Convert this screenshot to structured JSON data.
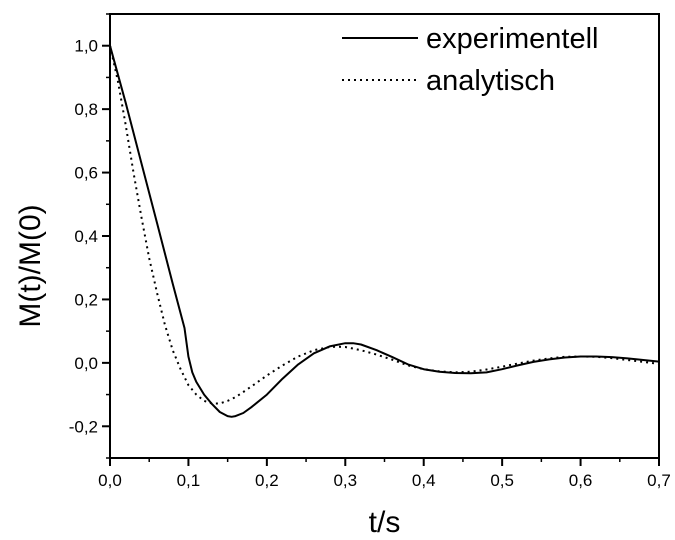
{
  "chart_data": {
    "type": "line",
    "title": "",
    "xlabel": "t/s",
    "ylabel": "M(t)/M(0)",
    "xlim": [
      0.0,
      0.7
    ],
    "ylim": [
      -0.3,
      1.1
    ],
    "x_ticks": [
      {
        "value": 0.0,
        "label": "0,0"
      },
      {
        "value": 0.1,
        "label": "0,1"
      },
      {
        "value": 0.2,
        "label": "0,2"
      },
      {
        "value": 0.3,
        "label": "0,3"
      },
      {
        "value": 0.4,
        "label": "0,4"
      },
      {
        "value": 0.5,
        "label": "0,5"
      },
      {
        "value": 0.6,
        "label": "0,6"
      },
      {
        "value": 0.7,
        "label": "0,7"
      }
    ],
    "y_ticks": [
      {
        "value": -0.2,
        "label": "-0,2"
      },
      {
        "value": 0.0,
        "label": "0,0"
      },
      {
        "value": 0.2,
        "label": "0,2"
      },
      {
        "value": 0.4,
        "label": "0,4"
      },
      {
        "value": 0.6,
        "label": "0,6"
      },
      {
        "value": 0.8,
        "label": "0,8"
      },
      {
        "value": 1.0,
        "label": "1,0"
      }
    ],
    "grid": false,
    "legend_position": "top-right",
    "series": [
      {
        "name": "experimentell",
        "line_style": "solid",
        "color": "#000000",
        "x": [
          0.0,
          0.02,
          0.04,
          0.06,
          0.08,
          0.095,
          0.1,
          0.105,
          0.11,
          0.12,
          0.13,
          0.14,
          0.15,
          0.155,
          0.16,
          0.17,
          0.18,
          0.2,
          0.22,
          0.24,
          0.26,
          0.28,
          0.3,
          0.31,
          0.32,
          0.34,
          0.36,
          0.38,
          0.4,
          0.42,
          0.44,
          0.46,
          0.48,
          0.5,
          0.52,
          0.54,
          0.56,
          0.58,
          0.6,
          0.62,
          0.64,
          0.66,
          0.68,
          0.7
        ],
        "y": [
          1.0,
          0.82,
          0.63,
          0.44,
          0.25,
          0.11,
          0.02,
          -0.03,
          -0.06,
          -0.1,
          -0.13,
          -0.155,
          -0.168,
          -0.17,
          -0.168,
          -0.158,
          -0.14,
          -0.1,
          -0.05,
          -0.005,
          0.03,
          0.052,
          0.062,
          0.062,
          0.058,
          0.04,
          0.018,
          -0.005,
          -0.02,
          -0.028,
          -0.032,
          -0.033,
          -0.03,
          -0.02,
          -0.008,
          0.003,
          0.011,
          0.017,
          0.02,
          0.02,
          0.018,
          0.014,
          0.009,
          0.004
        ]
      },
      {
        "name": "analytisch",
        "line_style": "dotted",
        "color": "#000000",
        "x": [
          0.0,
          0.01,
          0.02,
          0.03,
          0.04,
          0.05,
          0.06,
          0.07,
          0.08,
          0.09,
          0.1,
          0.11,
          0.12,
          0.13,
          0.14,
          0.15,
          0.16,
          0.17,
          0.18,
          0.2,
          0.22,
          0.24,
          0.26,
          0.28,
          0.29,
          0.3,
          0.32,
          0.34,
          0.36,
          0.38,
          0.4,
          0.42,
          0.44,
          0.46,
          0.48,
          0.5,
          0.52,
          0.54,
          0.56,
          0.58,
          0.6,
          0.62,
          0.64,
          0.66,
          0.68,
          0.7
        ],
        "y": [
          1.0,
          0.89,
          0.75,
          0.6,
          0.46,
          0.33,
          0.22,
          0.12,
          0.04,
          -0.02,
          -0.07,
          -0.1,
          -0.12,
          -0.128,
          -0.128,
          -0.12,
          -0.108,
          -0.092,
          -0.075,
          -0.04,
          -0.008,
          0.02,
          0.04,
          0.05,
          0.051,
          0.05,
          0.04,
          0.026,
          0.01,
          -0.008,
          -0.02,
          -0.027,
          -0.03,
          -0.028,
          -0.021,
          -0.012,
          -0.002,
          0.007,
          0.014,
          0.019,
          0.02,
          0.019,
          0.015,
          0.009,
          0.003,
          -0.003
        ]
      }
    ]
  }
}
